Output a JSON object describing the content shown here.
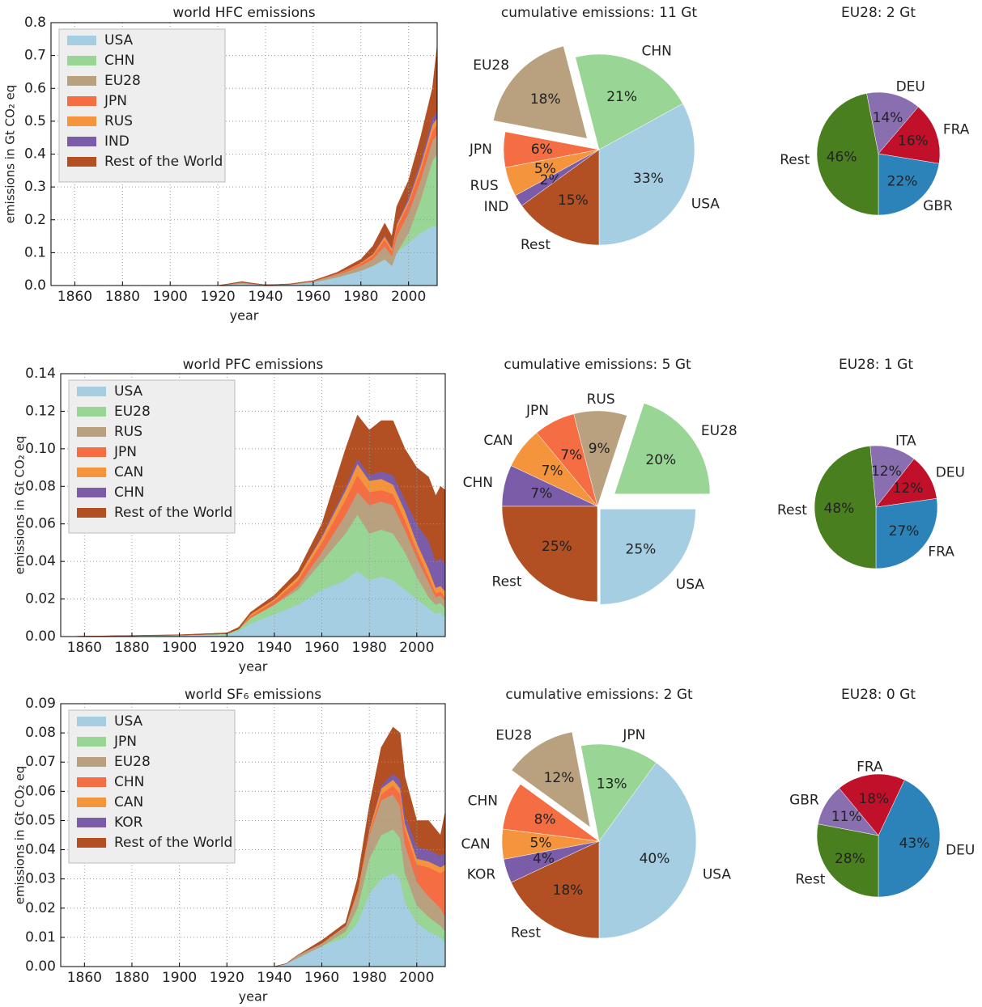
{
  "chart_data": [
    {
      "type": "area",
      "title": "world HFC emissions",
      "xlabel": "year",
      "ylabel": "emissions in Gt CO₂ eq",
      "x": [
        1850,
        1900,
        1920,
        1930,
        1940,
        1950,
        1960,
        1970,
        1975,
        1980,
        1985,
        1990,
        1993,
        1995,
        2000,
        2005,
        2010,
        2012
      ],
      "series": [
        {
          "name": "USA",
          "color": "#a6cee3",
          "values": [
            0,
            0,
            0,
            0.006,
            0.001,
            0.003,
            0.01,
            0.025,
            0.035,
            0.045,
            0.06,
            0.08,
            0.06,
            0.1,
            0.13,
            0.16,
            0.18,
            0.18
          ]
        },
        {
          "name": "CHN",
          "color": "#99d594",
          "values": [
            0,
            0,
            0,
            0,
            0,
            0,
            0,
            0,
            0,
            0,
            0,
            0,
            0,
            0,
            0.03,
            0.1,
            0.2,
            0.22
          ]
        },
        {
          "name": "EU28",
          "color": "#b9a07f",
          "values": [
            0,
            0,
            0,
            0.003,
            0.001,
            0.001,
            0.003,
            0.008,
            0.01,
            0.015,
            0.02,
            0.04,
            0.03,
            0.05,
            0.06,
            0.06,
            0.06,
            0.06
          ]
        },
        {
          "name": "JPN",
          "color": "#f46d43",
          "values": [
            0,
            0,
            0,
            0.001,
            0,
            0,
            0.001,
            0.003,
            0.005,
            0.007,
            0.01,
            0.02,
            0.015,
            0.025,
            0.03,
            0.03,
            0.03,
            0.03
          ]
        },
        {
          "name": "RUS",
          "color": "#f4943c",
          "values": [
            0,
            0,
            0,
            0,
            0,
            0,
            0,
            0.001,
            0.002,
            0.003,
            0.005,
            0.01,
            0.008,
            0.01,
            0.01,
            0.015,
            0.02,
            0.02
          ]
        },
        {
          "name": "IND",
          "color": "#7b5ca8",
          "values": [
            0,
            0,
            0,
            0,
            0,
            0,
            0,
            0,
            0,
            0,
            0.002,
            0.004,
            0.004,
            0.005,
            0.01,
            0.015,
            0.02,
            0.02
          ]
        },
        {
          "name": "Rest of the World",
          "color": "#b25024",
          "values": [
            0,
            0,
            0,
            0.002,
            0,
            0.001,
            0.001,
            0.003,
            0.008,
            0.01,
            0.023,
            0.036,
            0.033,
            0.05,
            0.05,
            0.07,
            0.09,
            0.2
          ]
        }
      ],
      "xlim": [
        1850,
        2012
      ],
      "xticks": [
        1860,
        1880,
        1900,
        1920,
        1940,
        1960,
        1980,
        2000
      ],
      "ylim": [
        0,
        0.8
      ],
      "yticks": [
        {
          "value": 0,
          "label": "0.0"
        },
        0.1,
        0.2,
        0.3,
        0.4,
        0.5,
        0.6,
        0.7,
        0.8
      ],
      "grid": true,
      "legend": "upper-left"
    },
    {
      "type": "pie",
      "title": "cumulative emissions: 11 Gt",
      "categories": [
        "USA",
        "CHN",
        "EU28",
        "JPN",
        "RUS",
        "IND",
        "Rest"
      ],
      "values": [
        33,
        21,
        18,
        6,
        5,
        2,
        15
      ],
      "value_labels": [
        "33%",
        "21%",
        "18%",
        "6%",
        "5%",
        "2%",
        "15%"
      ],
      "colors": [
        "#a6cee3",
        "#99d594",
        "#b9a07f",
        "#f46d43",
        "#f4943c",
        "#7b5ca8",
        "#b25024"
      ]
    },
    {
      "type": "pie",
      "title": "EU28: 2 Gt",
      "categories": [
        "GBR",
        "FRA",
        "DEU",
        "Rest"
      ],
      "values": [
        22,
        16,
        14,
        46
      ],
      "value_labels": [
        "22%",
        "16%",
        "14%",
        "46%"
      ],
      "colors": [
        "#2b83ba",
        "#c0102a",
        "#8a6fb0",
        "#4a7f1f"
      ]
    },
    {
      "type": "area",
      "title": "world PFC emissions",
      "xlabel": "year",
      "ylabel": "emissions in Gt CO₂ eq",
      "x": [
        1850,
        1900,
        1920,
        1925,
        1930,
        1940,
        1950,
        1960,
        1970,
        1975,
        1980,
        1985,
        1990,
        1995,
        2000,
        2005,
        2008,
        2010,
        2012
      ],
      "series": [
        {
          "name": "USA",
          "color": "#a6cee3",
          "values": [
            0,
            0.0005,
            0.001,
            0.003,
            0.007,
            0.012,
            0.017,
            0.025,
            0.03,
            0.035,
            0.03,
            0.032,
            0.03,
            0.025,
            0.02,
            0.015,
            0.012,
            0.013,
            0.01
          ]
        },
        {
          "name": "EU28",
          "color": "#99d594",
          "values": [
            0,
            0.0003,
            0.0005,
            0.001,
            0.003,
            0.005,
            0.008,
            0.015,
            0.025,
            0.03,
            0.025,
            0.025,
            0.025,
            0.02,
            0.012,
            0.006,
            0.005,
            0.005,
            0.005
          ]
        },
        {
          "name": "RUS",
          "color": "#b9a07f",
          "values": [
            0,
            0,
            0,
            0,
            0,
            0,
            0.002,
            0.005,
            0.01,
            0.012,
            0.015,
            0.015,
            0.015,
            0.012,
            0.01,
            0.008,
            0.004,
            0.004,
            0.004
          ]
        },
        {
          "name": "JPN",
          "color": "#f46d43",
          "values": [
            0,
            0,
            0,
            0,
            0.001,
            0.002,
            0.003,
            0.005,
            0.008,
            0.009,
            0.007,
            0.006,
            0.006,
            0.005,
            0.004,
            0.003,
            0.002,
            0.002,
            0.002
          ]
        },
        {
          "name": "CAN",
          "color": "#f4943c",
          "values": [
            0,
            0,
            0,
            0,
            0.001,
            0.001,
            0.002,
            0.003,
            0.005,
            0.006,
            0.006,
            0.006,
            0.005,
            0.005,
            0.004,
            0.004,
            0.003,
            0.003,
            0.003
          ]
        },
        {
          "name": "CHN",
          "color": "#7b5ca8",
          "values": [
            0,
            0,
            0,
            0,
            0,
            0,
            0,
            0.001,
            0.002,
            0.003,
            0.003,
            0.004,
            0.005,
            0.006,
            0.01,
            0.015,
            0.014,
            0.015,
            0.014
          ]
        },
        {
          "name": "Rest of the World",
          "color": "#b25024",
          "values": [
            0,
            0.0002,
            0.0005,
            0.001,
            0.001,
            0.002,
            0.003,
            0.006,
            0.02,
            0.023,
            0.024,
            0.027,
            0.029,
            0.027,
            0.03,
            0.034,
            0.035,
            0.038,
            0.04
          ]
        }
      ],
      "xlim": [
        1850,
        2012
      ],
      "xticks": [
        1860,
        1880,
        1900,
        1920,
        1940,
        1960,
        1980,
        2000
      ],
      "ylim": [
        0,
        0.14
      ],
      "yticks": [
        {
          "value": 0,
          "label": "0.00"
        },
        0.02,
        0.04,
        0.06,
        0.08,
        {
          "value": 0.1,
          "label": "0.10"
        },
        0.12,
        0.14
      ],
      "grid": true,
      "legend": "upper-left"
    },
    {
      "type": "pie",
      "title": "cumulative emissions: 5 Gt",
      "categories": [
        "USA",
        "EU28",
        "RUS",
        "JPN",
        "CAN",
        "CHN",
        "Rest"
      ],
      "values": [
        25,
        20,
        9,
        7,
        7,
        7,
        25
      ],
      "value_labels": [
        "25%",
        "20%",
        "9%",
        "7%",
        "7%",
        "7%",
        "25%"
      ],
      "colors": [
        "#a6cee3",
        "#99d594",
        "#b9a07f",
        "#f46d43",
        "#f4943c",
        "#7b5ca8",
        "#b25024"
      ]
    },
    {
      "type": "pie",
      "title": "EU28: 1 Gt",
      "categories": [
        "FRA",
        "DEU",
        "ITA",
        "Rest"
      ],
      "values": [
        27,
        12,
        12,
        48
      ],
      "value_labels": [
        "27%",
        "12%",
        "12%",
        "48%"
      ],
      "colors": [
        "#2b83ba",
        "#c0102a",
        "#8a6fb0",
        "#4a7f1f"
      ]
    },
    {
      "type": "area",
      "title": "world SF₆ emissions",
      "xlabel": "year",
      "ylabel": "emissions in Gt CO₂ eq",
      "x": [
        1850,
        1940,
        1945,
        1950,
        1960,
        1970,
        1975,
        1980,
        1985,
        1990,
        1993,
        1995,
        2000,
        2005,
        2010,
        2012
      ],
      "series": [
        {
          "name": "USA",
          "color": "#a6cee3",
          "values": [
            0,
            0,
            0.001,
            0.003,
            0.007,
            0.01,
            0.015,
            0.025,
            0.03,
            0.032,
            0.03,
            0.022,
            0.015,
            0.012,
            0.01,
            0.008
          ]
        },
        {
          "name": "JPN",
          "color": "#99d594",
          "values": [
            0,
            0,
            0,
            0,
            0,
            0.002,
            0.005,
            0.012,
            0.015,
            0.015,
            0.014,
            0.01,
            0.006,
            0.005,
            0.004,
            0.004
          ]
        },
        {
          "name": "EU28",
          "color": "#b9a07f",
          "values": [
            0,
            0,
            0,
            0.001,
            0.001,
            0.002,
            0.005,
            0.008,
            0.012,
            0.012,
            0.011,
            0.01,
            0.008,
            0.007,
            0.006,
            0.005
          ]
        },
        {
          "name": "CHN",
          "color": "#f46d43",
          "values": [
            0,
            0,
            0,
            0,
            0,
            0,
            0,
            0.001,
            0.002,
            0.003,
            0.004,
            0.005,
            0.006,
            0.01,
            0.012,
            0.016
          ]
        },
        {
          "name": "CAN",
          "color": "#f4943c",
          "values": [
            0,
            0,
            0,
            0,
            0,
            0,
            0.001,
            0.001,
            0.002,
            0.002,
            0.002,
            0.002,
            0.002,
            0.002,
            0.002,
            0.002
          ]
        },
        {
          "name": "KOR",
          "color": "#7b5ca8",
          "values": [
            0,
            0,
            0,
            0,
            0,
            0,
            0,
            0,
            0.001,
            0.002,
            0.003,
            0.003,
            0.004,
            0.004,
            0.004,
            0.004
          ]
        },
        {
          "name": "Rest of the World",
          "color": "#b25024",
          "values": [
            0,
            0,
            0,
            0,
            0.001,
            0.001,
            0.004,
            0.008,
            0.013,
            0.016,
            0.016,
            0.013,
            0.009,
            0.01,
            0.007,
            0.014
          ]
        }
      ],
      "xlim": [
        1850,
        2012
      ],
      "xticks": [
        1860,
        1880,
        1900,
        1920,
        1940,
        1960,
        1980,
        2000
      ],
      "ylim": [
        0,
        0.09
      ],
      "yticks": [
        {
          "value": 0,
          "label": "0.00"
        },
        0.01,
        0.02,
        0.03,
        0.04,
        0.05,
        0.06,
        0.07,
        0.08,
        0.09
      ],
      "grid": true,
      "legend": "upper-left"
    },
    {
      "type": "pie",
      "title": "cumulative emissions: 2 Gt",
      "categories": [
        "USA",
        "JPN",
        "EU28",
        "CHN",
        "CAN",
        "KOR",
        "Rest"
      ],
      "values": [
        40,
        13,
        12,
        8,
        5,
        4,
        18
      ],
      "value_labels": [
        "40%",
        "13%",
        "12%",
        "8%",
        "5%",
        "4%",
        "18%"
      ],
      "colors": [
        "#a6cee3",
        "#99d594",
        "#b9a07f",
        "#f46d43",
        "#f4943c",
        "#7b5ca8",
        "#b25024"
      ]
    },
    {
      "type": "pie",
      "title": "EU28: 0 Gt",
      "categories": [
        "DEU",
        "FRA",
        "GBR",
        "Rest"
      ],
      "values": [
        43,
        18,
        11,
        28
      ],
      "value_labels": [
        "43%",
        "18%",
        "11%",
        "28%"
      ],
      "colors": [
        "#2b83ba",
        "#c0102a",
        "#8a6fb0",
        "#4a7f1f"
      ]
    }
  ]
}
